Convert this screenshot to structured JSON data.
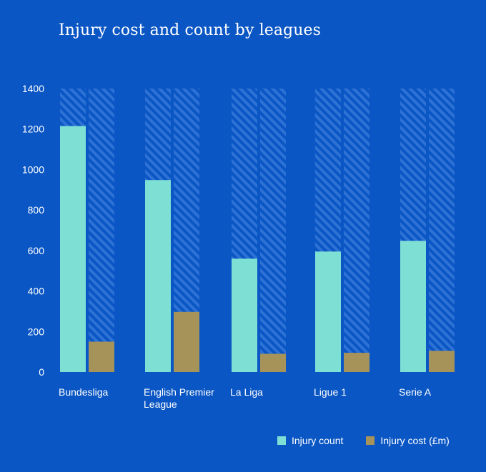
{
  "chart_data": {
    "type": "bar",
    "title": "Injury cost and count by leagues",
    "categories": [
      "Bundesliga",
      "English Premier League",
      "La Liga",
      "Ligue 1",
      "Serie A"
    ],
    "category_lines": [
      [
        "Bundesliga"
      ],
      [
        "English Premier",
        "League"
      ],
      [
        "La Liga"
      ],
      [
        "Ligue 1"
      ],
      [
        "Serie A"
      ]
    ],
    "series": [
      {
        "name": "Injury count",
        "color": "#7ee0d4",
        "values": [
          1215,
          948,
          560,
          595,
          648
        ]
      },
      {
        "name": "Injury cost (£m)",
        "color": "#a6935a",
        "values": [
          150,
          297,
          90,
          95,
          105
        ]
      }
    ],
    "ylim": [
      0,
      1400
    ],
    "yticks": [
      0,
      200,
      400,
      600,
      800,
      1000,
      1200,
      1400
    ],
    "ytick_labels": [
      "0",
      "200",
      "400",
      "600",
      "800",
      "1000",
      "1200",
      "1400"
    ],
    "background_bars": "hatched, full scale to 1400",
    "legend_position": "bottom-right",
    "grid": false
  },
  "colors": {
    "background": "#0a56c4",
    "hatch_light": "#2e72d6",
    "text": "#ffffff"
  }
}
